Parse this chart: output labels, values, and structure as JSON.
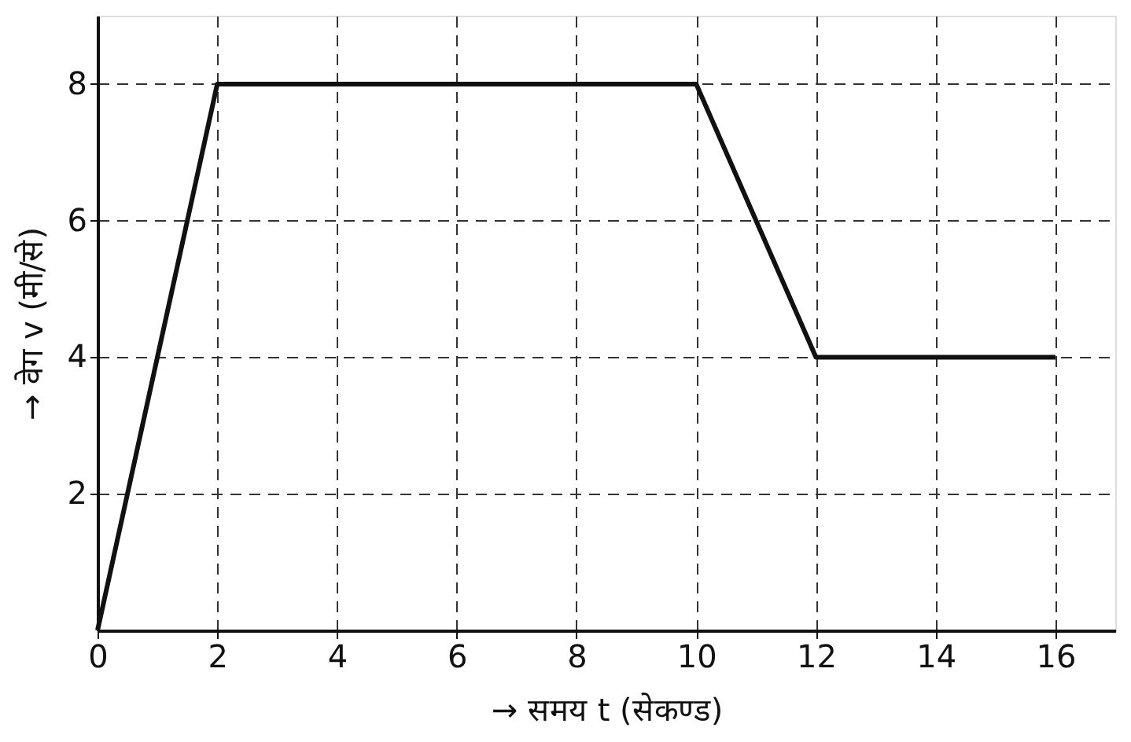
{
  "chart_data": {
    "type": "line",
    "xlabel": "→ समय t (सेकण्ड)",
    "ylabel": "→ वेग v (मी/से)",
    "x": [
      0,
      2,
      10,
      12,
      16
    ],
    "series": [
      {
        "color": "#111111",
        "values": [
          0,
          8,
          8,
          4,
          4
        ]
      }
    ],
    "xlim": [
      0,
      17
    ],
    "xticks": [
      0,
      2,
      4,
      6,
      8,
      10,
      12,
      14,
      16
    ],
    "ylim": [
      0,
      9
    ],
    "yticks": [
      2,
      4,
      6,
      8
    ],
    "grid": true,
    "marker": "none",
    "line_style": "solid"
  }
}
